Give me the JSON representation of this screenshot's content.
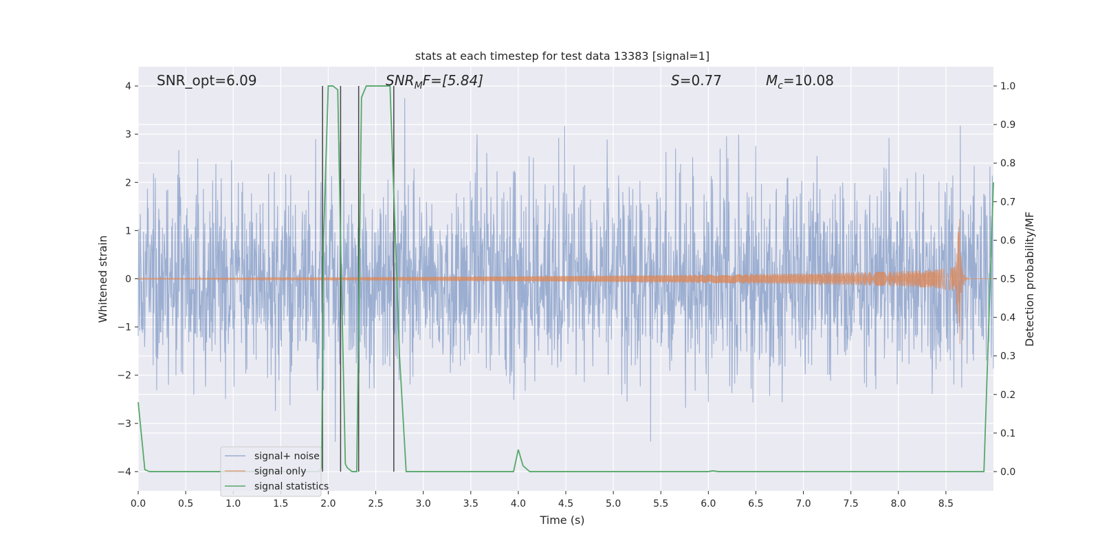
{
  "chart_data": {
    "type": "line",
    "title": "stats at each timestep for test data 13383 [signal=1]",
    "xlabel": "Time (s)",
    "ylabel_left": "Whitened strain",
    "ylabel_right": "Detection probability/MF",
    "xlim": [
      0.0,
      9.0
    ],
    "ylim_left": [
      -4.4,
      4.4
    ],
    "ylim_right": [
      -0.05,
      1.05
    ],
    "xticks": [
      "0.0",
      "0.5",
      "1.0",
      "1.5",
      "2.0",
      "2.5",
      "3.0",
      "3.5",
      "4.0",
      "4.5",
      "5.0",
      "5.5",
      "6.0",
      "6.5",
      "7.0",
      "7.5",
      "8.0",
      "8.5"
    ],
    "yticks_left": [
      "−4",
      "−3",
      "−2",
      "−1",
      "0",
      "1",
      "2",
      "3",
      "4"
    ],
    "yticks_right": [
      "0.0",
      "0.1",
      "0.2",
      "0.3",
      "0.4",
      "0.5",
      "0.6",
      "0.7",
      "0.8",
      "0.9",
      "1.0"
    ],
    "grid": true,
    "legend_position": "lower-left",
    "annotations": {
      "snr_opt": "SNR_opt=6.09",
      "snr_mf_symbol": "SNR",
      "snr_mf_sub": "M",
      "snr_mf_rest": "F=[5.84]",
      "s_symbol": "S",
      "s_rest": "=0.77",
      "mc_symbol": "M",
      "mc_sub": "c",
      "mc_rest": "=10.08"
    },
    "series": [
      {
        "name": "signal+ noise",
        "axis": "left",
        "color": "#4c72b0",
        "description_stats": {
          "typical_amplitude": 1.5,
          "peak_range": [
            -3.9,
            3.7
          ]
        }
      },
      {
        "name": "signal only",
        "axis": "left",
        "color": "#dd8452",
        "chirp": {
          "start": 4.6,
          "merger": 8.65,
          "peak_amplitude": 1.15,
          "pre_merger_amplitude": 0.3,
          "ringdown_min": -0.75
        }
      },
      {
        "name": "signal statistics",
        "axis": "right",
        "color": "#55a868",
        "x": [
          0.0,
          0.07,
          0.12,
          1.9,
          1.93,
          1.95,
          2.0,
          2.05,
          2.1,
          2.13,
          2.18,
          2.2,
          2.25,
          2.3,
          2.35,
          2.4,
          2.45,
          2.5,
          2.65,
          2.75,
          2.82,
          2.85,
          3.95,
          4.0,
          4.05,
          4.12,
          6.0,
          6.05,
          6.1,
          8.9,
          9.0
        ],
        "y": [
          0.18,
          0.005,
          0.0,
          0.0,
          0.01,
          0.6,
          1.0,
          1.0,
          0.99,
          0.6,
          0.02,
          0.01,
          0.0,
          0.0,
          0.97,
          1.0,
          1.0,
          1.0,
          1.0,
          0.3,
          0.0,
          0.0,
          0.0,
          0.057,
          0.015,
          0.0,
          0.0,
          0.002,
          0.0,
          0.0,
          0.75
        ]
      }
    ],
    "vertical_markers": {
      "color": "#444444",
      "x": [
        1.94,
        2.13,
        2.32,
        2.69
      ],
      "y_top": 4.0,
      "y_bottom": -4.0
    }
  },
  "colors": {
    "plot_background": "#eaeaf2",
    "grid": "#ffffff",
    "noise": "#4c72b0",
    "signal": "#dd8452",
    "stats": "#55a868"
  }
}
